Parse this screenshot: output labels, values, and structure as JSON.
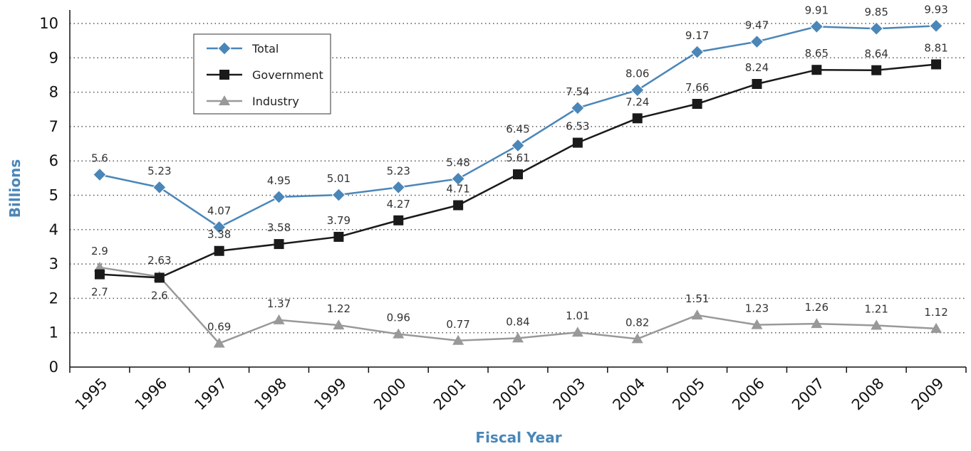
{
  "chart_data": {
    "type": "line",
    "title": "",
    "xlabel": "Fiscal Year",
    "ylabel": "Billions",
    "categories": [
      "1995",
      "1996",
      "1997",
      "1998",
      "1999",
      "2000",
      "2001",
      "2002",
      "2003",
      "2004",
      "2005",
      "2006",
      "2007",
      "2008",
      "2009"
    ],
    "ylim": [
      0,
      10
    ],
    "yticks": [
      "0",
      "1",
      "2",
      "3",
      "4",
      "5",
      "6",
      "7",
      "8",
      "9",
      "10"
    ],
    "grid": "horizontal-dotted",
    "legend_position": "top-left",
    "series": [
      {
        "name": "Total",
        "color": "#4a86b8",
        "marker": "diamond",
        "values": [
          5.6,
          5.23,
          4.07,
          4.95,
          5.01,
          5.23,
          5.48,
          6.45,
          7.54,
          8.06,
          9.17,
          9.47,
          9.91,
          9.85,
          9.93
        ],
        "labels": [
          "5.6",
          "5.23",
          "4.07",
          "4.95",
          "5.01",
          "5.23",
          "5.48",
          "6.45",
          "7.54",
          "8.06",
          "9.17",
          "9.47",
          "9.91",
          "9.85",
          "9.93"
        ]
      },
      {
        "name": "Government",
        "color": "#1a1a1a",
        "marker": "square",
        "values": [
          2.7,
          2.6,
          3.38,
          3.58,
          3.79,
          4.27,
          4.71,
          5.61,
          6.53,
          7.24,
          7.66,
          8.24,
          8.65,
          8.64,
          8.81
        ],
        "labels": [
          "2.7",
          "2.6",
          "3.38",
          "3.58",
          "3.79",
          "4.27",
          "4.71",
          "5.61",
          "6.53",
          "7.24",
          "7.66",
          "8.24",
          "8.65",
          "8.64",
          "8.81"
        ]
      },
      {
        "name": "Industry",
        "color": "#999999",
        "marker": "triangle",
        "values": [
          2.9,
          2.63,
          0.69,
          1.37,
          1.22,
          0.96,
          0.77,
          0.84,
          1.01,
          0.82,
          1.51,
          1.23,
          1.26,
          1.21,
          1.12
        ],
        "labels": [
          "2.9",
          "2.63",
          "0.69",
          "1.37",
          "1.22",
          "0.96",
          "0.77",
          "0.84",
          "1.01",
          "0.82",
          "1.51",
          "1.23",
          "1.26",
          "1.21",
          "1.12"
        ]
      }
    ]
  },
  "colors": {
    "axis_title": "#4a86b8",
    "grid": "#555555",
    "axis": "#111111"
  }
}
